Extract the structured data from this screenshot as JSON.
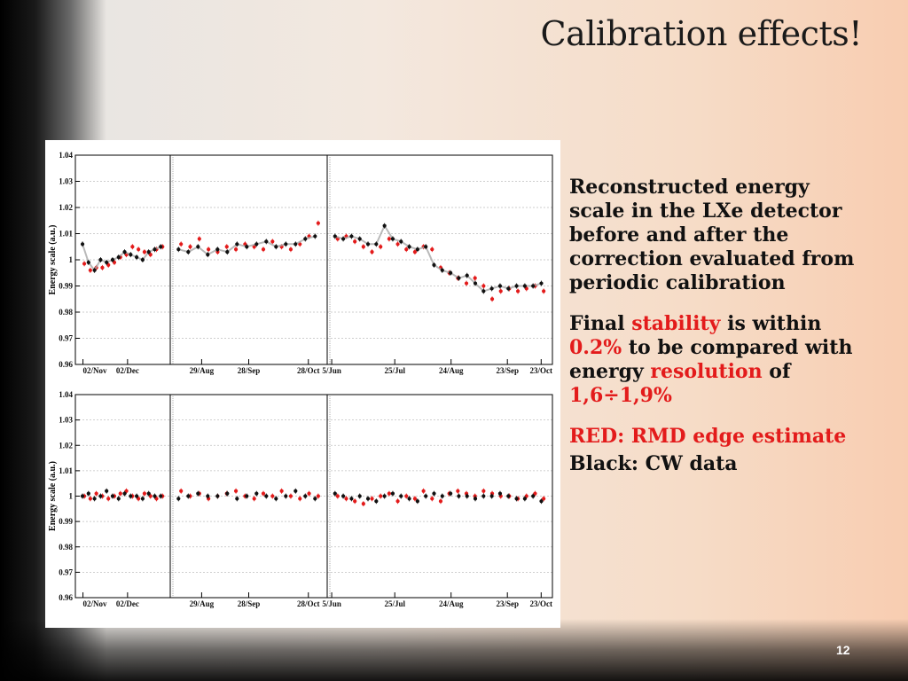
{
  "slide": {
    "title": "Calibration effects!",
    "page_number": "12"
  },
  "text_blocks": {
    "p1": "Reconstructed energy scale in the LXe detector before and after the correction evaluated from periodic calibration",
    "p2_prefix": "Final ",
    "p2_stability": "stability",
    "p2_mid1": " is within ",
    "p2_value": "0.2%",
    "p2_mid2": " to be compared with  energy ",
    "p2_resolution": "resolution",
    "p2_mid3": " of ",
    "p2_range": "1,6÷1,9%",
    "p3": "RED: RMD edge estimate",
    "p4": "Black: CW data"
  },
  "colors": {
    "red_series": "#e31b1b",
    "black_series": "#111111",
    "grey_line": "#a8a8a8",
    "accent_text": "#e31b1b"
  },
  "chart_data": [
    {
      "type": "scatter",
      "title": "",
      "ylabel": "Energy scale (a.u.)",
      "ylim": [
        0.96,
        1.04
      ],
      "yticks": [
        "0.96",
        "0.97",
        "0.98",
        "0.99",
        "1",
        "1.01",
        "1.02",
        "1.03",
        "1.04"
      ],
      "grid": true,
      "periods": [
        {
          "xticks": [
            "02/Nov",
            "02/Dec"
          ]
        },
        {
          "xticks": [
            "29/Aug",
            "28/Sep",
            "28/Oct"
          ]
        },
        {
          "xticks": [
            "5/Jun",
            "25/Jul",
            "24/Aug",
            "23/Sep",
            "23/Oct"
          ]
        }
      ],
      "series": [
        {
          "name": "RED: RMD edge estimate",
          "values": [
            [
              0.9985,
              0.996,
              0.997,
              0.997,
              0.998,
              0.999,
              1.001,
              1.002,
              1.005,
              1.004,
              1.003,
              1.002,
              1.004,
              1.005
            ],
            [
              1.006,
              1.005,
              1.008,
              1.004,
              1.003,
              1.005,
              1.004,
              1.006,
              1.005,
              1.004,
              1.007,
              1.005,
              1.004,
              1.006,
              1.009,
              1.014
            ],
            [
              1.008,
              1.009,
              1.007,
              1.005,
              1.003,
              1.005,
              1.008,
              1.006,
              1.004,
              1.003,
              1.005,
              1.004,
              0.997,
              0.995,
              0.993,
              0.991,
              0.993,
              0.99,
              0.985,
              0.988,
              0.989,
              0.988,
              0.989,
              0.99,
              0.988
            ]
          ]
        },
        {
          "name": "Black: CW data",
          "values": [
            [
              1.006,
              0.999,
              0.996,
              1.0,
              0.999,
              1.0,
              1.001,
              1.003,
              1.002,
              1.001,
              1.0,
              1.003,
              1.004,
              1.005
            ],
            [
              1.004,
              1.003,
              1.005,
              1.002,
              1.004,
              1.003,
              1.006,
              1.005,
              1.006,
              1.007,
              1.005,
              1.006,
              1.006,
              1.008,
              1.009
            ],
            [
              1.009,
              1.008,
              1.009,
              1.008,
              1.006,
              1.006,
              1.013,
              1.008,
              1.007,
              1.005,
              1.004,
              1.005,
              0.998,
              0.996,
              0.995,
              0.993,
              0.994,
              0.991,
              0.988,
              0.989,
              0.99,
              0.989,
              0.99,
              0.99,
              0.99,
              0.991
            ]
          ]
        }
      ]
    },
    {
      "type": "scatter",
      "title": "",
      "ylabel": "Energy scale (a.u.)",
      "ylim": [
        0.96,
        1.04
      ],
      "yticks": [
        "0.96",
        "0.97",
        "0.98",
        "0.99",
        "1",
        "1.01",
        "1.02",
        "1.03",
        "1.04"
      ],
      "grid": true,
      "periods": [
        {
          "xticks": [
            "02/Nov",
            "02/Dec"
          ]
        },
        {
          "xticks": [
            "29/Aug",
            "28/Sep",
            "28/Oct"
          ]
        },
        {
          "xticks": [
            "5/Jun",
            "25/Jul",
            "24/Aug",
            "23/Sep",
            "23/Oct"
          ]
        }
      ],
      "series": [
        {
          "name": "RED: RMD edge estimate",
          "values": [
            [
              1.0,
              0.999,
              1.001,
              1.0,
              0.999,
              1.0,
              1.001,
              1.002,
              1.0,
              0.999,
              1.001,
              1.0,
              0.999,
              1.0
            ],
            [
              1.002,
              1.0,
              1.001,
              0.999,
              1.0,
              1.001,
              1.002,
              1.0,
              0.999,
              1.001,
              1.0,
              1.002,
              1.0,
              0.999,
              1.001,
              1.0
            ],
            [
              1.0,
              0.999,
              0.998,
              0.997,
              0.999,
              1.0,
              1.001,
              0.998,
              1.0,
              0.999,
              1.002,
              0.999,
              0.998,
              1.001,
              1.002,
              1.001,
              1.0,
              1.002,
              1.001,
              1.0,
              1.0,
              0.999,
              1.0,
              1.001,
              0.999
            ]
          ]
        },
        {
          "name": "Black: CW data",
          "values": [
            [
              1.0,
              1.001,
              0.999,
              1.0,
              1.002,
              1.0,
              0.999,
              1.001,
              1.0,
              1.0,
              0.999,
              1.001,
              1.0,
              1.0
            ],
            [
              0.999,
              1.0,
              1.001,
              1.0,
              1.0,
              1.001,
              0.999,
              1.0,
              1.001,
              1.0,
              0.999,
              1.0,
              1.002,
              1.0,
              0.999
            ],
            [
              1.001,
              1.0,
              0.999,
              1.0,
              0.999,
              0.998,
              1.0,
              1.001,
              1.0,
              0.999,
              0.998,
              1.0,
              1.001,
              1.0,
              1.001,
              1.0,
              1.0,
              0.999,
              1.0,
              1.0,
              1.001,
              1.0,
              0.999,
              0.999,
              1.0,
              0.998
            ]
          ]
        }
      ]
    }
  ]
}
